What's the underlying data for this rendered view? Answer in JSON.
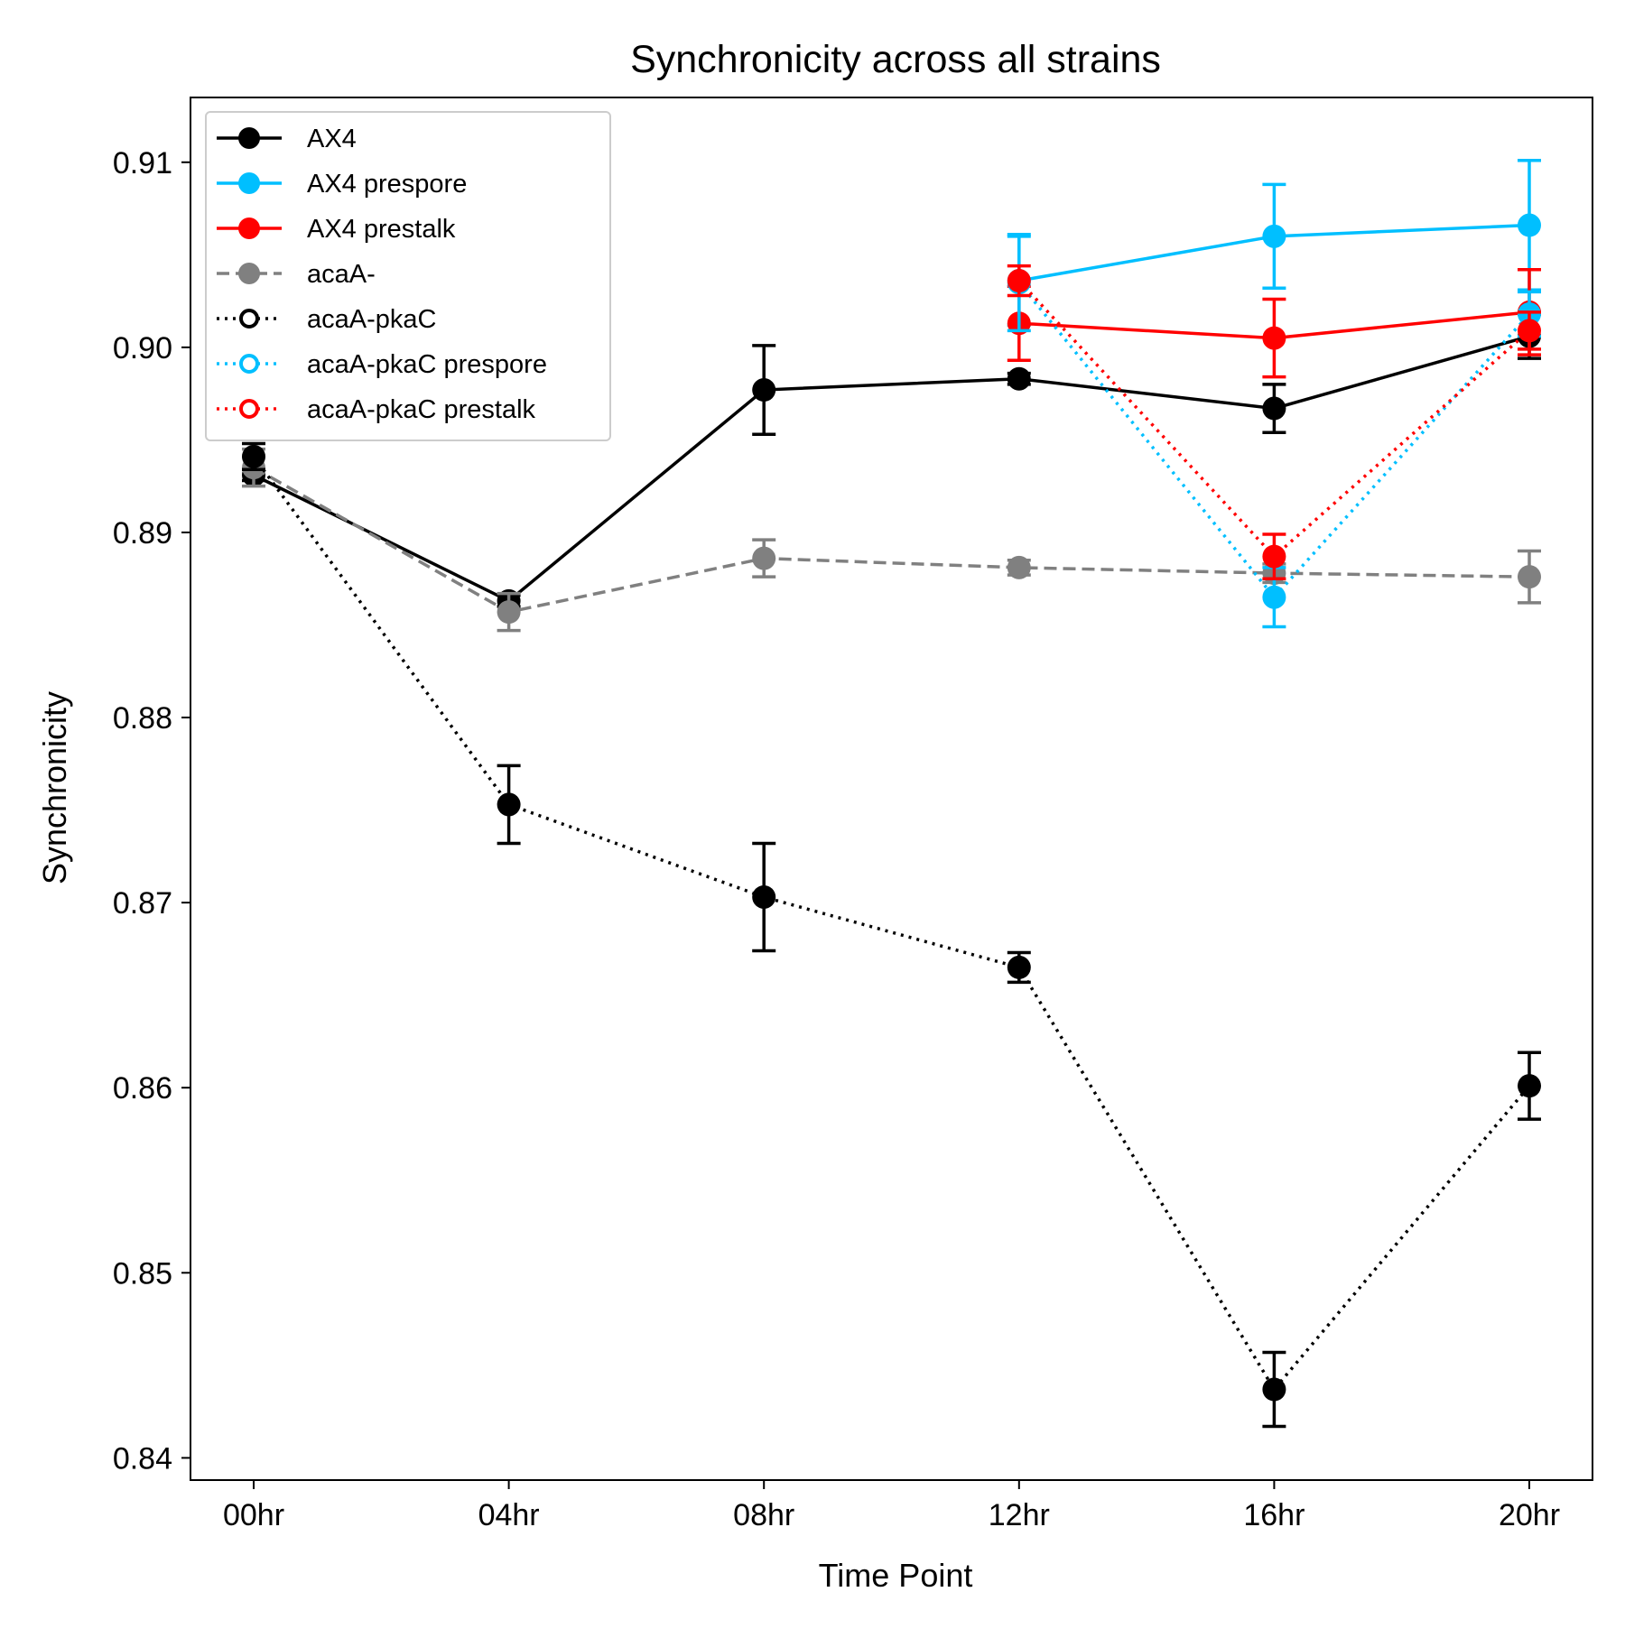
{
  "chart_data": {
    "type": "line",
    "title": "Synchronicity across all strains",
    "xlabel": "Time Point",
    "ylabel": "Synchronicity",
    "categories": [
      "00hr",
      "04hr",
      "08hr",
      "12hr",
      "16hr",
      "20hr"
    ],
    "ylim": [
      0.8388,
      0.9135
    ],
    "yticks": [
      0.84,
      0.85,
      0.86,
      0.87,
      0.88,
      0.89,
      0.9,
      0.91
    ],
    "ytick_labels": [
      "0.84",
      "0.85",
      "0.86",
      "0.87",
      "0.88",
      "0.89",
      "0.90",
      "0.91"
    ],
    "grid": false,
    "legend_position": "upper-left",
    "series": [
      {
        "name": "AX4",
        "color": "#000000",
        "line_style": "solid",
        "marker": "filled",
        "values": [
          0.8931,
          0.8863,
          0.8977,
          0.8983,
          0.8967,
          0.9006
        ],
        "errors": [
          0.0003,
          0.0003,
          0.0024,
          0.0003,
          0.0013,
          0.0012
        ]
      },
      {
        "name": "AX4 prespore",
        "color": "#00BFFF",
        "line_style": "solid",
        "marker": "filled",
        "values": [
          null,
          null,
          null,
          0.9036,
          0.906,
          0.9066
        ],
        "errors": [
          null,
          null,
          null,
          0.0024,
          0.0028,
          0.0035
        ]
      },
      {
        "name": "AX4 prestalk",
        "color": "#FF0000",
        "line_style": "solid",
        "marker": "filled",
        "values": [
          null,
          null,
          null,
          0.9013,
          0.9005,
          0.9019
        ],
        "errors": [
          null,
          null,
          null,
          0.002,
          0.0021,
          0.0023
        ]
      },
      {
        "name": "acaA-",
        "color": "#808080",
        "line_style": "dashed",
        "marker": "filled",
        "values": [
          0.8935,
          0.8857,
          0.8886,
          0.8881,
          0.8878,
          0.8876
        ],
        "errors": [
          0.001,
          0.001,
          0.001,
          0.0004,
          0.0005,
          0.0014
        ]
      },
      {
        "name": "acaA-pkaC",
        "color": "#000000",
        "line_style": "dotted",
        "marker": "filled",
        "values": [
          0.8941,
          0.8753,
          0.8703,
          0.8665,
          0.8437,
          0.8601
        ],
        "errors": [
          0.0007,
          0.0021,
          0.0029,
          0.0008,
          0.002,
          0.0018
        ]
      },
      {
        "name": "acaA-pkaC prespore",
        "color": "#00BFFF",
        "line_style": "dotted",
        "marker": "filled",
        "values": [
          null,
          null,
          null,
          0.9035,
          0.8865,
          0.9018
        ],
        "errors": [
          null,
          null,
          null,
          0.0026,
          0.0016,
          0.0012
        ]
      },
      {
        "name": "acaA-pkaC prestalk",
        "color": "#FF0000",
        "line_style": "dotted",
        "marker": "filled",
        "values": [
          null,
          null,
          null,
          0.9036,
          0.8887,
          0.9009
        ],
        "errors": [
          null,
          null,
          null,
          0.0008,
          0.0012,
          0.001
        ]
      }
    ]
  }
}
